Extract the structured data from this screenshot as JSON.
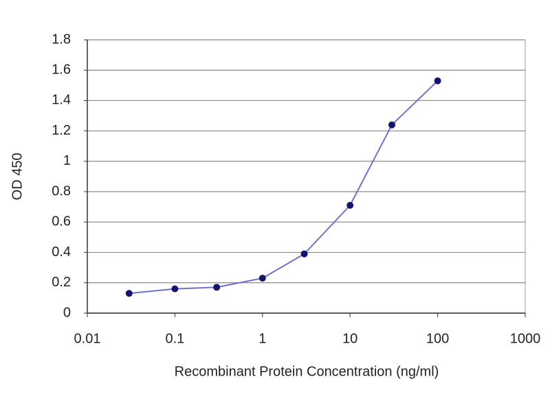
{
  "chart_data": {
    "type": "line",
    "x_label": "Recombinant Protein Concentration (ng/ml)",
    "y_label": "OD 450",
    "x": [
      0.03,
      0.1,
      0.3,
      1,
      3,
      10,
      30,
      100
    ],
    "values": [
      0.13,
      0.16,
      0.17,
      0.23,
      0.39,
      0.71,
      1.24,
      1.53
    ],
    "color": "#7070d0",
    "marker_color": "#14146e",
    "xscale": "log",
    "xlim": [
      0.01,
      1000
    ],
    "xticks": [
      0.01,
      0.1,
      1,
      10,
      100,
      1000
    ],
    "ylim": [
      0,
      1.8
    ],
    "yticks": [
      0,
      0.2,
      0.4,
      0.6,
      0.8,
      1,
      1.2,
      1.4,
      1.6,
      1.8
    ],
    "grid": true
  }
}
